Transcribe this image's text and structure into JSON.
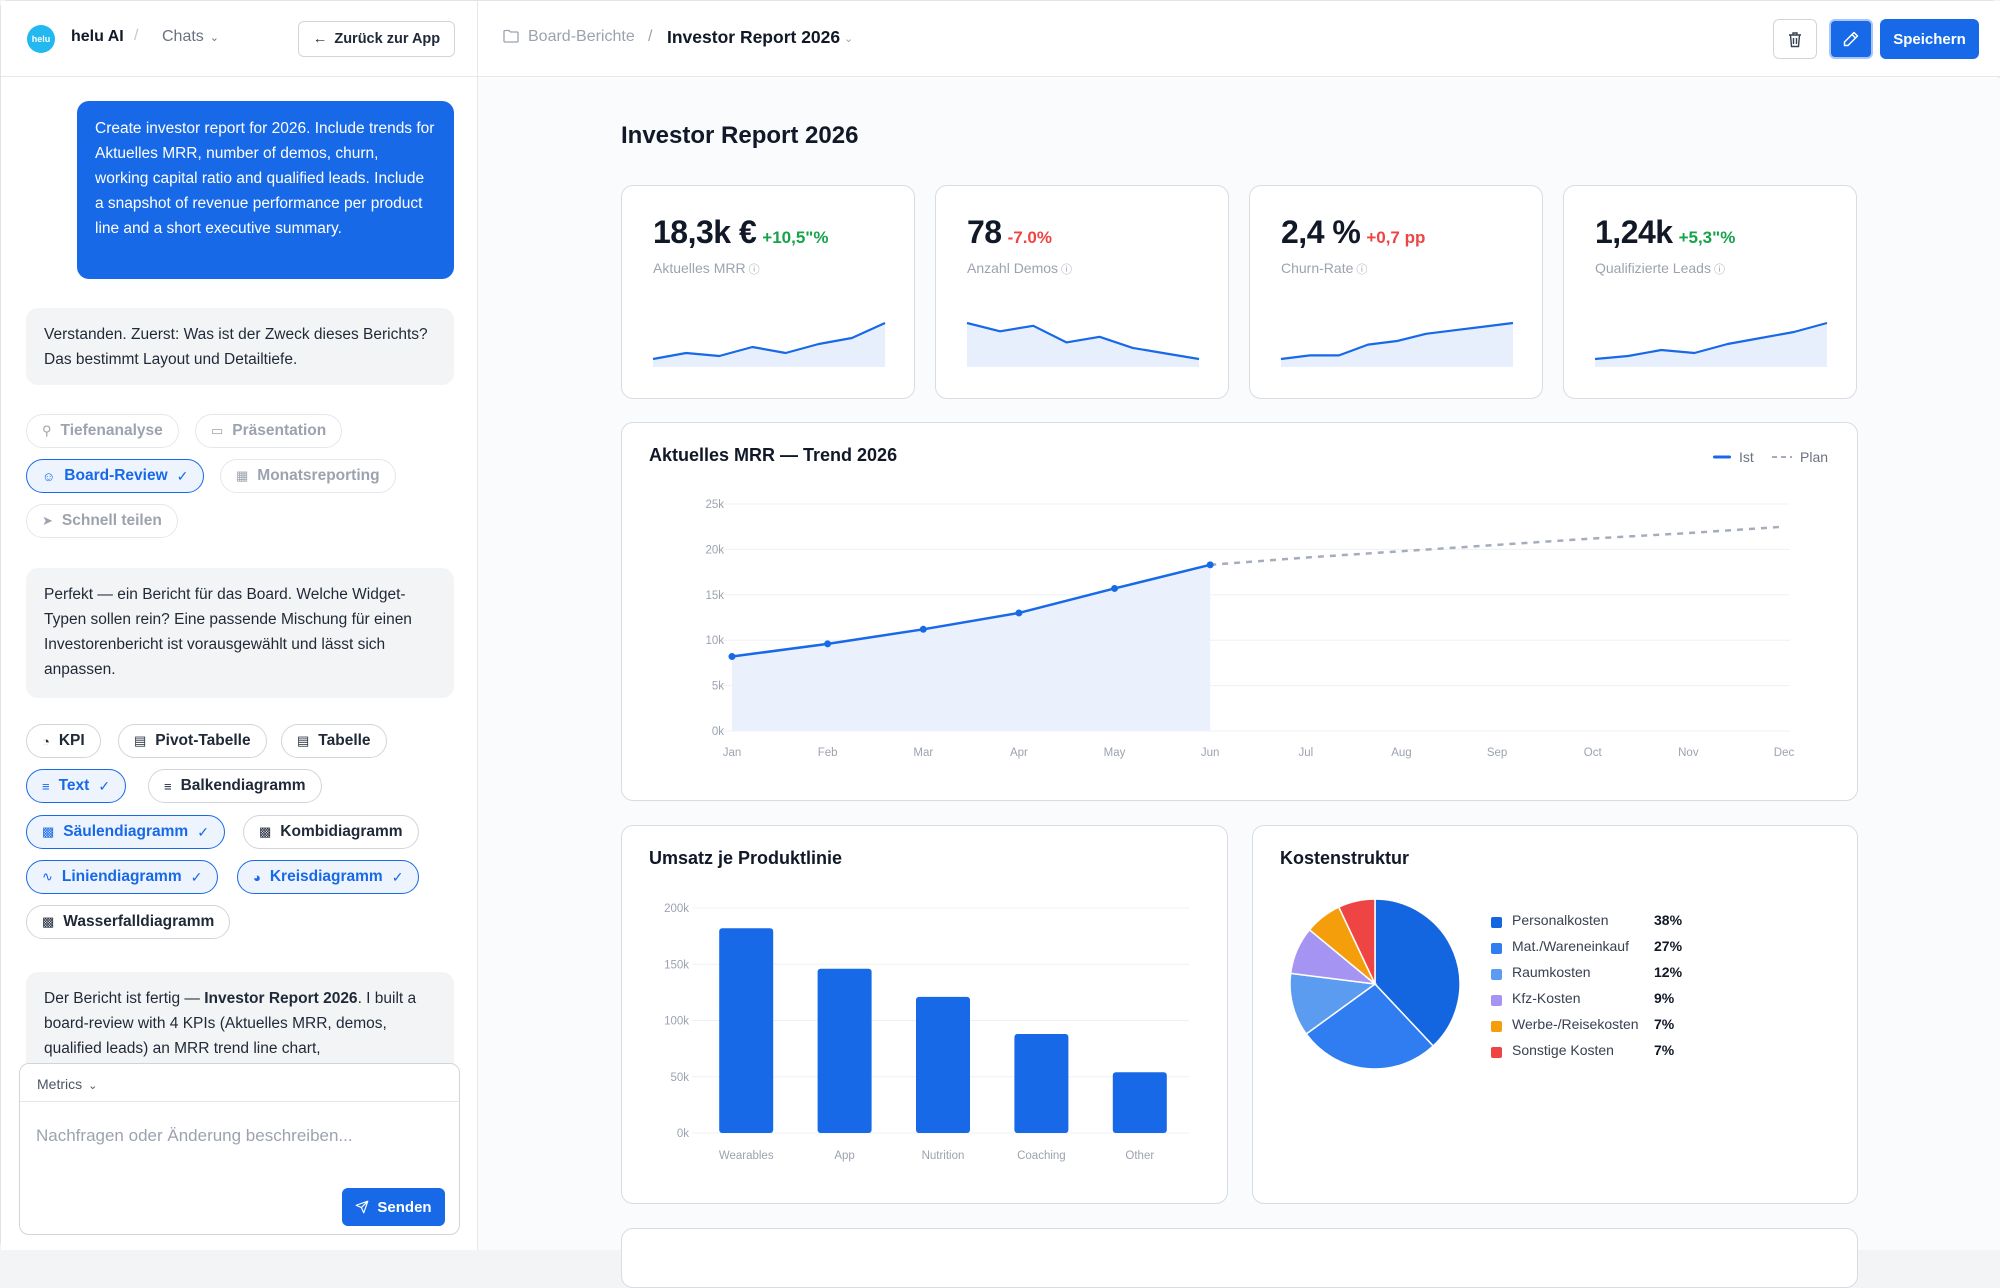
{
  "app": {
    "logo_text": "helu",
    "name": "helu AI",
    "chats_label": "Chats",
    "back_button": "Zurück zur App"
  },
  "chat": {
    "user_message": "Create investor report for 2026. Include trends for Aktuelles MRR, number of demos, churn, working capital ratio and qualified leads. Include a snapshot of revenue performance per product line and a short executive summary.",
    "bot_message_1": "Verstanden. Zuerst: Was ist der Zweck dieses Berichts? Das bestimmt Layout und Detailtiefe.",
    "purpose_chips": [
      {
        "label": "Tiefenanalyse",
        "icon": "search-icon",
        "selected": false
      },
      {
        "label": "Präsentation",
        "icon": "presentation-icon",
        "selected": false
      },
      {
        "label": "Board-Review",
        "icon": "users-icon",
        "selected": true
      },
      {
        "label": "Monatsreporting",
        "icon": "calendar-icon",
        "selected": false
      },
      {
        "label": "Schnell teilen",
        "icon": "send-icon",
        "selected": false
      }
    ],
    "bot_message_2": "Perfekt — ein Bericht für das Board. Welche Widget-Typen sollen rein? Eine passende Mischung für einen Investorenbericht ist vorausgewählt und lässt sich anpassen.",
    "widget_chips": [
      {
        "label": "KPI",
        "icon": "gauge-icon",
        "selected": false
      },
      {
        "label": "Pivot-Tabelle",
        "icon": "pivot-table-icon",
        "selected": false
      },
      {
        "label": "Tabelle",
        "icon": "table-icon",
        "selected": false
      },
      {
        "label": "Text",
        "icon": "text-icon",
        "selected": true
      },
      {
        "label": "Balkendiagramm",
        "icon": "bar-chart-icon",
        "selected": false
      },
      {
        "label": "Säulendiagramm",
        "icon": "column-chart-icon",
        "selected": true
      },
      {
        "label": "Kombidiagramm",
        "icon": "combo-chart-icon",
        "selected": false
      },
      {
        "label": "Liniendiagramm",
        "icon": "line-chart-icon",
        "selected": true
      },
      {
        "label": "Kreisdiagramm",
        "icon": "pie-chart-icon",
        "selected": true
      },
      {
        "label": "Wasserfalldiagramm",
        "icon": "waterfall-chart-icon",
        "selected": false
      }
    ],
    "bot_message_3_prefix": "Der Bericht ist fertig — ",
    "bot_message_3_bold": "Investor Report 2026",
    "bot_message_3_suffix": ". I built a board-review with 4 KPIs (Aktuelles MRR, demos, qualified leads) an MRR trend line chart,",
    "composer": {
      "context_label": "Metrics",
      "placeholder": "Nachfragen oder Änderung beschreiben...",
      "send_label": "Senden"
    }
  },
  "topbar": {
    "folder": "Board-Berichte",
    "report": "Investor Report 2026",
    "save_label": "Speichern"
  },
  "report": {
    "title": "Investor Report 2026",
    "kpis": [
      {
        "value": "18,3k €",
        "delta": "+10,5\"%",
        "delta_color": "#16a34a",
        "label": "Aktuelles MRR",
        "spark": [
          3,
          5,
          4,
          7,
          5,
          8,
          10,
          15
        ]
      },
      {
        "value": "78",
        "delta": "-7.0%",
        "delta_color": "#ef4444",
        "label": "Anzahl Demos",
        "spark": [
          15,
          12,
          14,
          8,
          10,
          6,
          4,
          2
        ]
      },
      {
        "value": "2,4 %",
        "delta": "+0,7 pp",
        "delta_color": "#ef4444",
        "label": "Churn-Rate",
        "spark": [
          2,
          3,
          3,
          6,
          7,
          9,
          10,
          11,
          12
        ]
      },
      {
        "value": "1,24k",
        "delta": "+5,3\"%",
        "delta_color": "#16a34a",
        "label": "Qualifizierte Leads",
        "spark": [
          2,
          3,
          5,
          4,
          7,
          9,
          11,
          14
        ]
      }
    ],
    "mrr_chart_title": "Aktuelles MRR — Trend 2026",
    "bar_chart_title": "Umsatz je Produktlinie",
    "pie_chart_title": "Kostenstruktur"
  },
  "colors": {
    "accent": "#1769e8",
    "plan": "#a5adbd"
  },
  "chart_data": [
    {
      "type": "line",
      "title": "Aktuelles MRR — Trend 2026",
      "categories": [
        "Jan",
        "Feb",
        "Mar",
        "Apr",
        "May",
        "Jun",
        "Jul",
        "Aug",
        "Sep",
        "Oct",
        "Nov",
        "Dec"
      ],
      "series": [
        {
          "name": "Ist",
          "values": [
            8200,
            9600,
            11200,
            13000,
            15700,
            18300,
            null,
            null,
            null,
            null,
            null,
            null
          ]
        },
        {
          "name": "Plan",
          "values": [
            null,
            null,
            null,
            null,
            null,
            18300,
            19100,
            19800,
            20500,
            21200,
            21800,
            22500
          ]
        }
      ],
      "yticks": [
        "0k",
        "5k",
        "10k",
        "15k",
        "20k",
        "25k"
      ],
      "ylim": [
        0,
        25000
      ],
      "grid": true,
      "legend": "top-right"
    },
    {
      "type": "bar",
      "title": "Umsatz je Produktlinie",
      "categories": [
        "Wearables",
        "App",
        "Nutrition",
        "Coaching",
        "Other"
      ],
      "values": [
        182000,
        146000,
        121000,
        88000,
        54000
      ],
      "yticks": [
        "0k",
        "50k",
        "100k",
        "150k",
        "200k"
      ],
      "ylim": [
        0,
        200000
      ],
      "grid": true
    },
    {
      "type": "pie",
      "title": "Kostenstruktur",
      "slices": [
        {
          "label": "Personalkosten",
          "value": 38,
          "display": "38%",
          "color": "#1466e0"
        },
        {
          "label": "Mat./Wareneinkauf",
          "value": 27,
          "display": "27%",
          "color": "#2f7df0"
        },
        {
          "label": "Raumkosten",
          "value": 12,
          "display": "12%",
          "color": "#5c9cf0"
        },
        {
          "label": "Kfz-Kosten",
          "value": 9,
          "display": "9%",
          "color": "#a694f2"
        },
        {
          "label": "Werbe-/Reisekosten",
          "value": 7,
          "display": "7%",
          "color": "#f59e0b"
        },
        {
          "label": "Sonstige Kosten",
          "value": 7,
          "display": "7%",
          "color": "#ef4444"
        }
      ],
      "legend": "right"
    }
  ]
}
